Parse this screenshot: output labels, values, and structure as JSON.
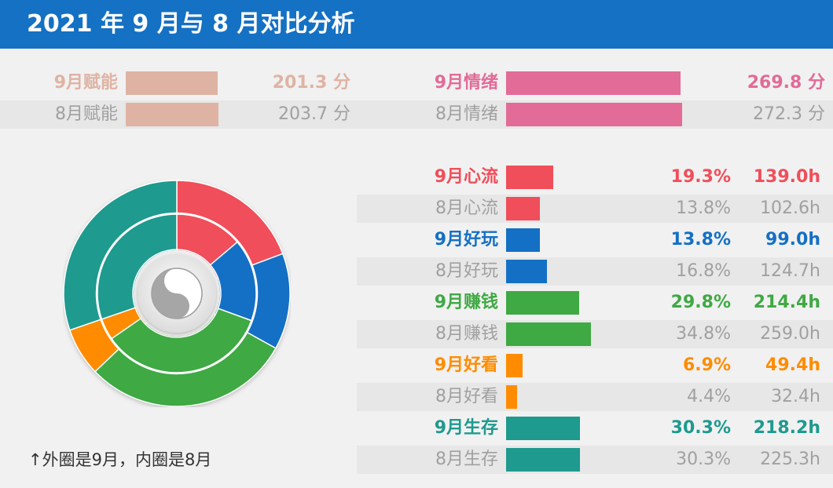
{
  "header": {
    "title": "2021 年 9 月与 8 月对比分析"
  },
  "summary": {
    "energy": [
      {
        "label": "9月赋能",
        "value": 201.3,
        "text": "201.3 分",
        "current": true
      },
      {
        "label": "8月赋能",
        "value": 203.7,
        "text": "203.7 分",
        "current": false
      }
    ],
    "emotion": [
      {
        "label": "9月情绪",
        "value": 269.8,
        "text": "269.8 分",
        "current": true
      },
      {
        "label": "8月情绪",
        "value": 272.3,
        "text": "272.3 分",
        "current": false
      }
    ]
  },
  "colors": {
    "energy": "#dfb3a3",
    "emotion": "#e26b98",
    "flow": "#f04e5a",
    "fun": "#1470c4",
    "money": "#3fa944",
    "watch": "#ff8c00",
    "survive": "#1e9a8f",
    "gray_text": "#a0a0a0"
  },
  "chart_data": {
    "type": "bar",
    "categories": [
      "心流",
      "好玩",
      "赚钱",
      "好看",
      "生存"
    ],
    "series": [
      {
        "name": "9月",
        "percent": [
          19.3,
          13.8,
          29.8,
          6.9,
          30.3
        ],
        "hours": [
          139.0,
          99.0,
          214.4,
          49.4,
          218.2
        ]
      },
      {
        "name": "8月",
        "percent": [
          13.8,
          16.8,
          34.8,
          4.4,
          30.3
        ],
        "hours": [
          102.6,
          124.7,
          259.0,
          32.4,
          225.3
        ]
      }
    ],
    "rows": [
      {
        "label": "9月心流",
        "pct_text": "19.3%",
        "hours_text": "139.0h",
        "key": "flow",
        "current": true
      },
      {
        "label": "8月心流",
        "pct_text": "13.8%",
        "hours_text": "102.6h",
        "key": "flow",
        "current": false
      },
      {
        "label": "9月好玩",
        "pct_text": "13.8%",
        "hours_text": "99.0h",
        "key": "fun",
        "current": true
      },
      {
        "label": "8月好玩",
        "pct_text": "16.8%",
        "hours_text": "124.7h",
        "key": "fun",
        "current": false
      },
      {
        "label": "9月赚钱",
        "pct_text": "29.8%",
        "hours_text": "214.4h",
        "key": "money",
        "current": true
      },
      {
        "label": "8月赚钱",
        "pct_text": "34.8%",
        "hours_text": "259.0h",
        "key": "money",
        "current": false
      },
      {
        "label": "9月好看",
        "pct_text": "6.9%",
        "hours_text": "49.4h",
        "key": "watch",
        "current": true
      },
      {
        "label": "8月好看",
        "pct_text": "4.4%",
        "hours_text": "32.4h",
        "key": "watch",
        "current": false
      },
      {
        "label": "9月生存",
        "pct_text": "30.3%",
        "hours_text": "218.2h",
        "key": "survive",
        "current": true
      },
      {
        "label": "8月生存",
        "pct_text": "30.3%",
        "hours_text": "225.3h",
        "key": "survive",
        "current": false
      }
    ],
    "donut": {
      "outer": {
        "month": "9月",
        "values": [
          19.3,
          13.8,
          29.8,
          6.9,
          30.3
        ]
      },
      "inner": {
        "month": "8月",
        "values": [
          13.8,
          16.8,
          34.8,
          4.4,
          30.3
        ]
      },
      "order": [
        "flow",
        "fun",
        "money",
        "watch",
        "survive"
      ],
      "center_icon": "yin-yang-icon"
    }
  },
  "footnote": "↑外圈是9月，内圈是8月"
}
